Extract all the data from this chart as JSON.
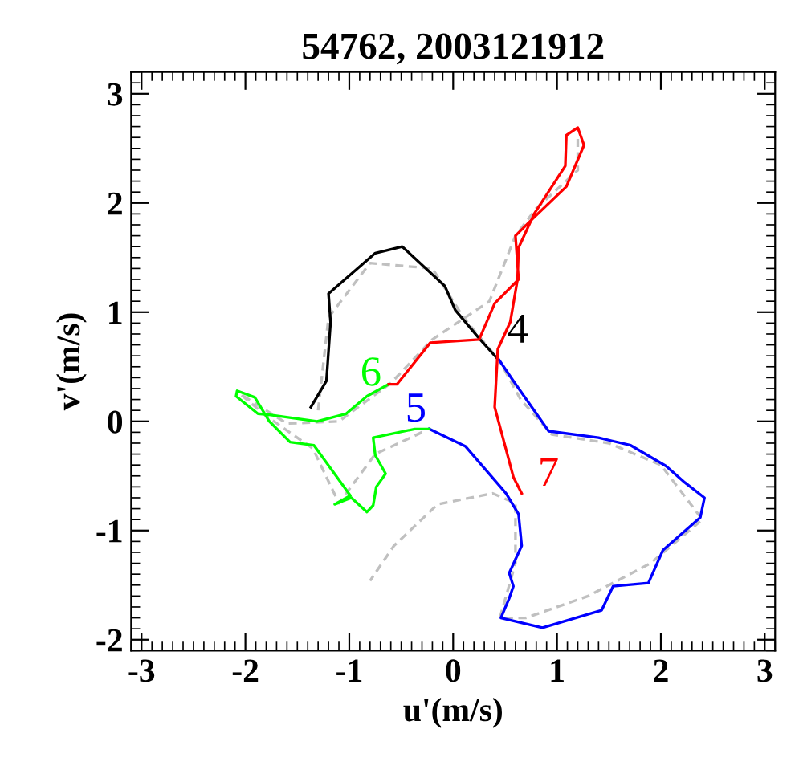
{
  "chart_data": {
    "type": "line",
    "title": "54762, 2003121912",
    "xlabel": "u'(m/s)",
    "ylabel": "v'(m/s)",
    "xlim": [
      -3.1,
      3.1
    ],
    "ylim": [
      -2.1,
      3.2
    ],
    "xticks": [
      -3,
      -2,
      -1,
      0,
      1,
      2,
      3
    ],
    "yticks": [
      -2,
      -1,
      0,
      1,
      2,
      3
    ],
    "grid": false,
    "legend": false,
    "line_style": "solid",
    "marker": "none",
    "series": [
      {
        "color": "#000000",
        "x": [
          -1.37,
          -1.22,
          -1.18,
          -1.2,
          -0.75,
          -0.49,
          -0.08,
          0.02,
          0.25,
          0.43
        ],
        "values": [
          0.13,
          0.37,
          0.91,
          1.17,
          1.54,
          1.6,
          1.24,
          1.02,
          0.76,
          0.57
        ]
      },
      {
        "color": "#0000ff",
        "x": [
          0.43,
          0.58,
          0.92,
          1.4,
          1.71,
          2.05,
          2.23,
          2.42,
          2.38,
          2.02,
          1.88,
          1.54,
          1.43,
          0.86,
          0.46,
          0.54,
          0.58,
          0.54,
          0.66,
          0.63,
          0.51,
          0.12,
          -0.23
        ],
        "values": [
          0.58,
          0.37,
          -0.09,
          -0.15,
          -0.22,
          -0.41,
          -0.56,
          -0.7,
          -0.88,
          -1.18,
          -1.48,
          -1.51,
          -1.73,
          -1.89,
          -1.8,
          -1.62,
          -1.51,
          -1.39,
          -1.14,
          -0.85,
          -0.66,
          -0.23,
          -0.07
        ]
      },
      {
        "color": "#00ff00",
        "x": [
          -0.23,
          -0.37,
          -0.77,
          -0.75,
          -0.65,
          -0.74,
          -0.77,
          -0.83,
          -0.98,
          -1.06,
          -1.14,
          -0.99,
          -1.34,
          -1.57,
          -1.77,
          -1.91,
          -2.08,
          -2.09,
          -1.88,
          -1.77,
          -1.31,
          -1.03,
          -0.83,
          -0.62
        ],
        "values": [
          -0.07,
          -0.07,
          -0.15,
          -0.31,
          -0.48,
          -0.6,
          -0.77,
          -0.83,
          -0.7,
          -0.73,
          -0.76,
          -0.68,
          -0.22,
          -0.19,
          0.0,
          0.22,
          0.28,
          0.23,
          0.07,
          0.06,
          0.0,
          0.07,
          0.23,
          0.34
        ]
      },
      {
        "color": "#ff0000",
        "x": [
          -0.62,
          -0.54,
          -0.22,
          0.25,
          0.4,
          0.63,
          0.6,
          0.77,
          1.09,
          1.26,
          1.2,
          1.09,
          1.08,
          0.78,
          0.63,
          0.62,
          0.55,
          0.43,
          0.4,
          0.51,
          0.58,
          0.66
        ],
        "values": [
          0.34,
          0.34,
          0.72,
          0.75,
          1.08,
          1.3,
          1.7,
          1.86,
          2.15,
          2.53,
          2.69,
          2.62,
          2.34,
          1.9,
          1.59,
          1.3,
          0.91,
          0.66,
          0.13,
          -0.26,
          -0.51,
          -0.66
        ]
      },
      {
        "color": "#c0c0c0",
        "line_style": "dashed",
        "x": [
          -1.3,
          -1.2,
          -0.8,
          -0.2,
          0.1,
          0.45,
          0.65,
          0.95,
          1.5,
          2.0,
          2.4,
          1.9,
          1.3,
          0.7,
          0.45,
          0.6,
          0.6,
          0.38,
          -0.15,
          -0.57,
          -0.8
        ],
        "values": [
          0.1,
          0.95,
          1.45,
          1.4,
          0.95,
          0.55,
          0.2,
          -0.12,
          -0.2,
          -0.4,
          -0.9,
          -1.3,
          -1.6,
          -1.8,
          -1.8,
          -1.3,
          -0.75,
          -0.66,
          -0.76,
          -1.14,
          -1.46
        ]
      },
      {
        "color": "#c0c0c0",
        "line_style": "dashed",
        "x": [
          -0.3,
          -0.75,
          -1.1,
          -1.35,
          -1.8,
          -2.05,
          -1.6,
          -1.1,
          -0.6,
          -0.2,
          0.35,
          0.6,
          0.8,
          1.2,
          1.2
        ],
        "values": [
          -0.1,
          -0.3,
          -0.75,
          -0.25,
          0.05,
          0.25,
          -0.02,
          0.0,
          0.35,
          0.75,
          1.1,
          1.7,
          1.95,
          2.3,
          2.6
        ]
      }
    ],
    "annotations": [
      {
        "text": "4",
        "x": 0.43,
        "y": 0.57
      },
      {
        "text": "5",
        "x": -0.23,
        "y": -0.07
      },
      {
        "text": "6",
        "x": -0.62,
        "y": 0.34
      },
      {
        "text": "7",
        "x": 0.66,
        "y": -0.66
      }
    ]
  }
}
